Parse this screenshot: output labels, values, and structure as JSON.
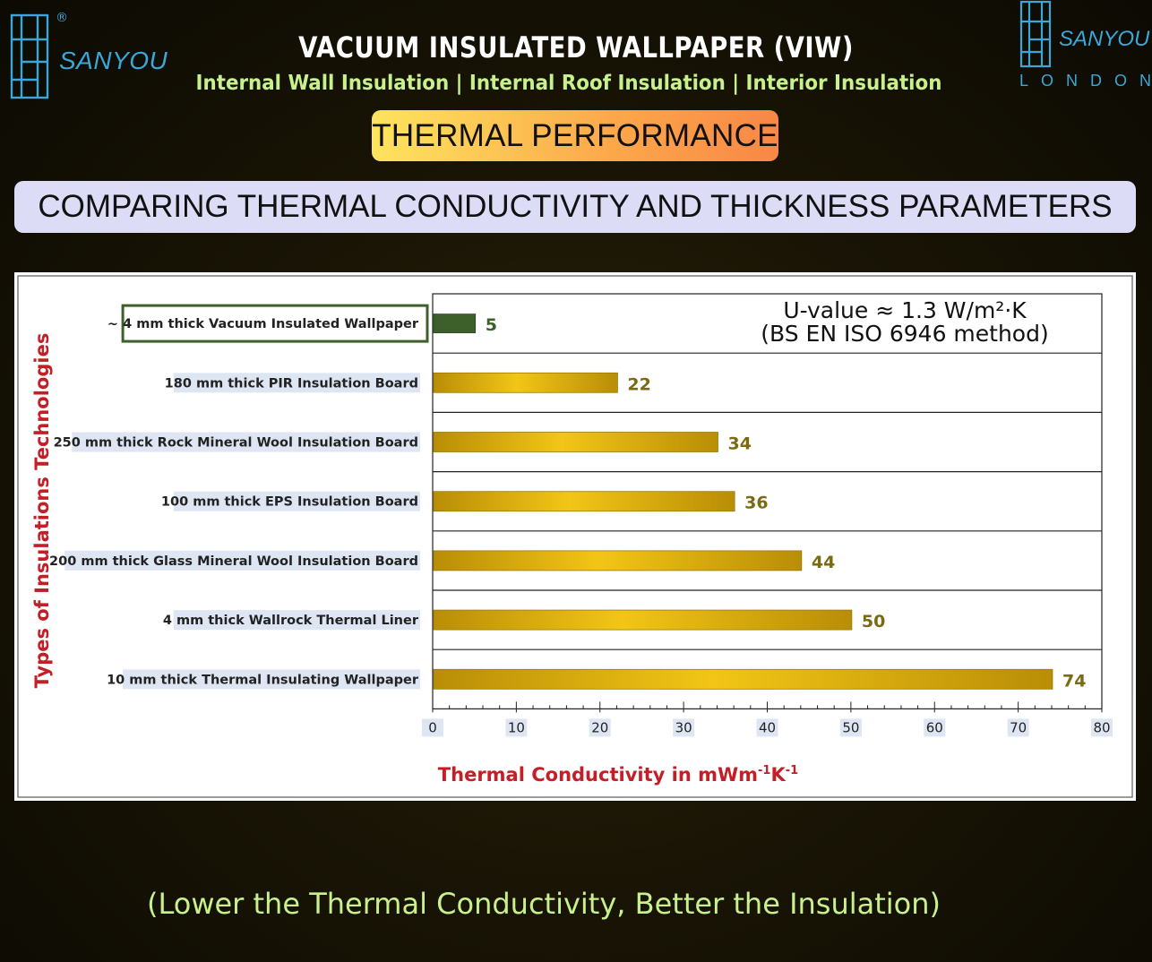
{
  "brand": {
    "left_name": "SANYOU",
    "left_reg": "®",
    "right_name": "SANYOU",
    "right_sub": "LONDON",
    "logo_color": "#3aa7d8"
  },
  "header": {
    "title": "VACUUM INSULATED WALLPAPER (VIW)",
    "subtitle": "Internal Wall Insulation | Internal Roof Insulation |  Interior Insulation"
  },
  "badge": {
    "label": "THERMAL PERFORMANCE"
  },
  "banner": {
    "label": "COMPARING THERMAL CONDUCTIVITY AND THICKNESS PARAMETERS"
  },
  "footer": {
    "text": "(Lower the Thermal Conductivity, Better the Insulation)"
  },
  "chart_data": {
    "type": "bar",
    "orientation": "horizontal",
    "categories": [
      "~ 4 mm thick Vacuum Insulated Wallpaper",
      "180 mm thick PIR Insulation Board",
      "250 mm thick Rock Mineral Wool Insulation Board",
      "100 mm thick EPS Insulation Board",
      "200 mm thick Glass Mineral Wool Insulation Board",
      "4 mm thick Wallrock Thermal Liner",
      "10 mm thick Thermal Insulating Wallpaper"
    ],
    "values": [
      5,
      22,
      34,
      36,
      44,
      50,
      74
    ],
    "highlight_index": 0,
    "xlabel": "Thermal Conductivity in mWm",
    "xlabel_sup1": "-1",
    "xlabel_mid": "K",
    "xlabel_sup2": "-1",
    "ylabel": "Types of  Insulations  Technologies",
    "xlim": [
      0,
      80
    ],
    "xticks": [
      0,
      10,
      20,
      30,
      40,
      50,
      60,
      70,
      80
    ],
    "grid": "horizontal",
    "annotation": {
      "line1": "U-value ≈ 1.3 W/m²·K",
      "line2": "(BS EN ISO 6946 method)",
      "placement": "top-right"
    },
    "colors": {
      "highlight_bar": "#3d5f2a",
      "bar_light": "#f2c516",
      "bar_dark": "#b98d06",
      "value_label": "#7a6a12",
      "highlight_value": "#3d5f2a",
      "axis_title": "#c41e26",
      "category_bg": "#dfe6f3"
    }
  }
}
